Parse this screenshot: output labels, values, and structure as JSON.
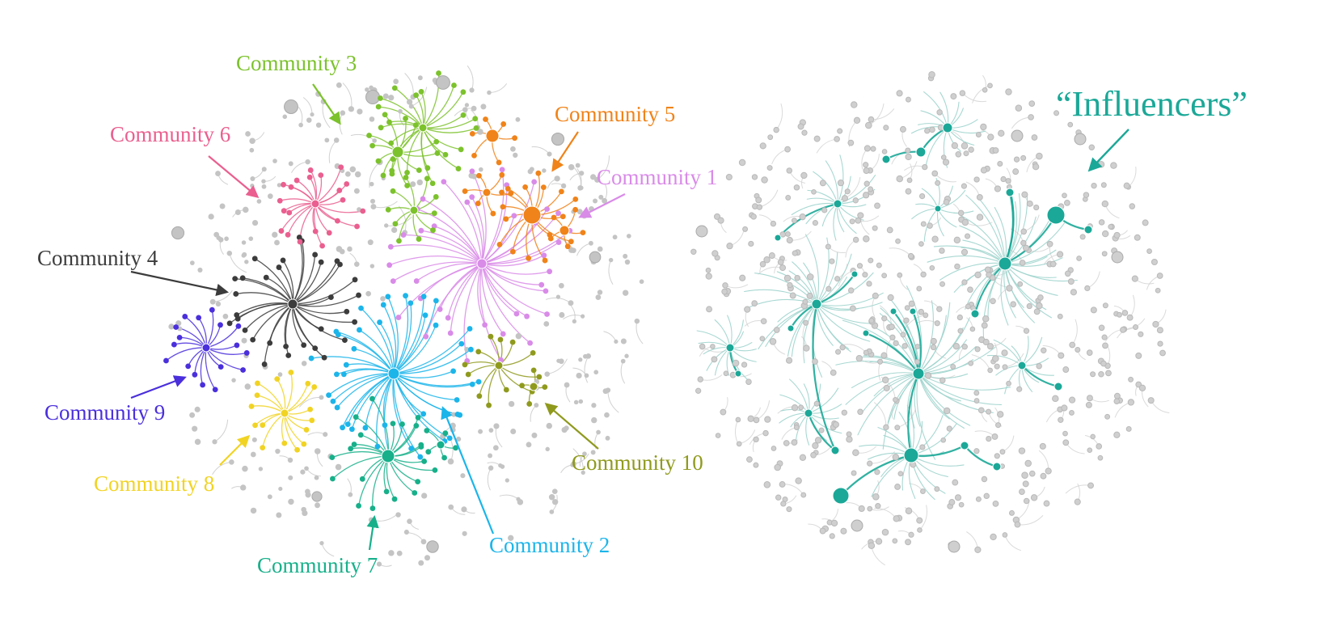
{
  "left_panel": {
    "communities": [
      {
        "id": "c1",
        "label": "Community 1",
        "color": "#d98be8"
      },
      {
        "id": "c2",
        "label": "Community 2",
        "color": "#1cb5ea"
      },
      {
        "id": "c3",
        "label": "Community 3",
        "color": "#7cc22c"
      },
      {
        "id": "c4",
        "label": "Community 4",
        "color": "#3c3c3c"
      },
      {
        "id": "c5",
        "label": "Community 5",
        "color": "#f08319"
      },
      {
        "id": "c6",
        "label": "Community 6",
        "color": "#ea5f8f"
      },
      {
        "id": "c7",
        "label": "Community 7",
        "color": "#17b08a"
      },
      {
        "id": "c8",
        "label": "Community 8",
        "color": "#f1d324"
      },
      {
        "id": "c9",
        "label": "Community 9",
        "color": "#4a2fdc"
      },
      {
        "id": "c10",
        "label": "Community 10",
        "color": "#8f9a1d"
      }
    ],
    "background_node_color": "#c4c4c4"
  },
  "right_panel": {
    "label": "“Influencers”",
    "highlight_color": "#1ba898",
    "faint_edge_color": "#9fd4cd",
    "background_node_color": "#cfcfcf"
  }
}
